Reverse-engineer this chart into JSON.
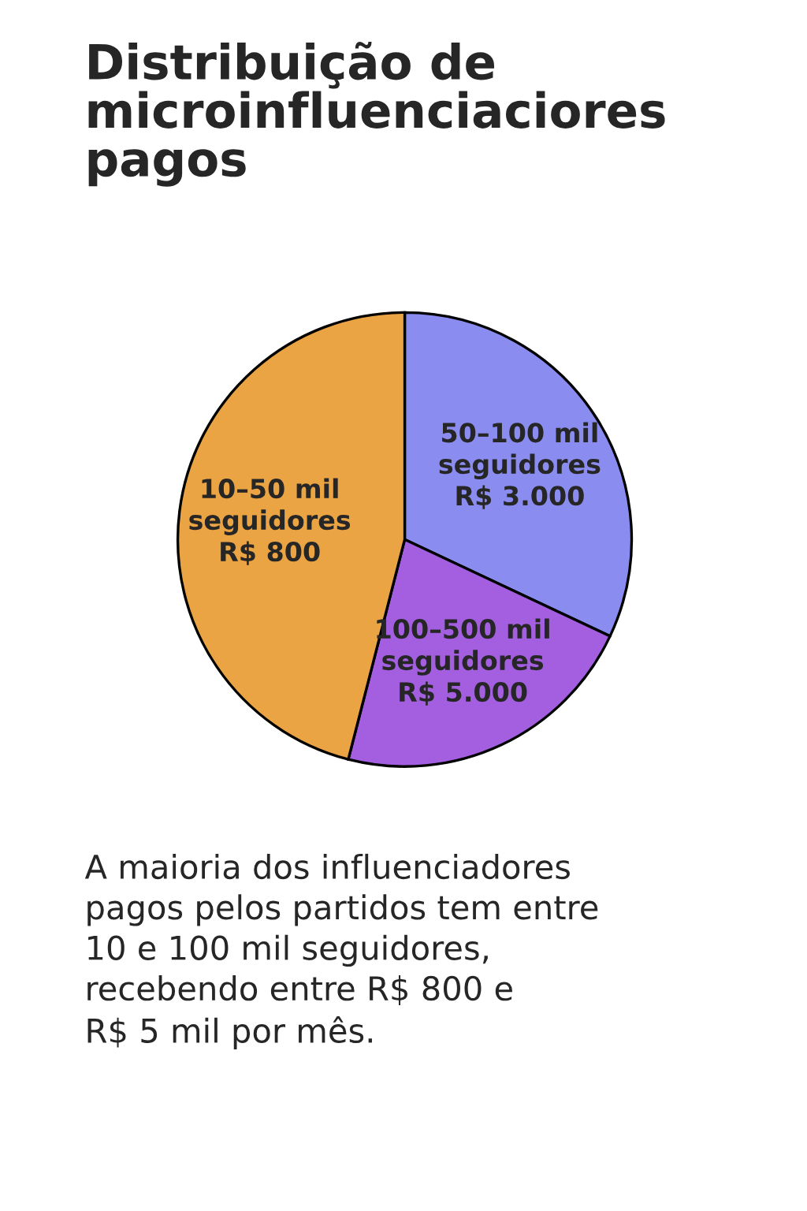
{
  "chart_data": {
    "type": "pie",
    "title": "Distribuição de\nmicroinfluenciaciores\npagos",
    "categories": [
      "50–100 mil\nseguidores\nR$ 3.000",
      "100–500 mil\nseguidores\nR$ 5.000",
      "10–50 mil\nseguidores\nR$ 800"
    ],
    "values": [
      32,
      22,
      46
    ],
    "colors": [
      "#8a8cf0",
      "#a45fe0",
      "#eba443"
    ],
    "annotations": [
      "A maioria dos influenciadores\npagos pelos partidos tem entre\n10 e 100 mil seguidores,\nrecebendo entre R$ 800 e\nR$ 5 mil por mês."
    ]
  }
}
